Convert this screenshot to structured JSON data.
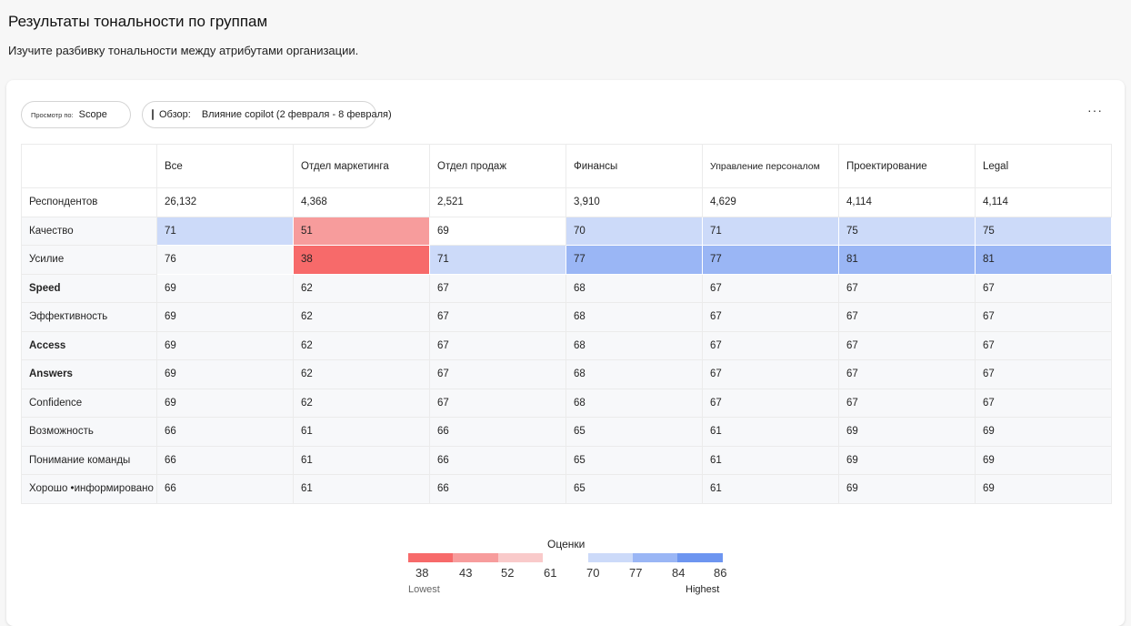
{
  "page": {
    "title": "Результаты тональности по группам",
    "subtitle": "Изучите разбивку тональности между атрибутами организации."
  },
  "toolbar": {
    "view_by_label": "Просмотр по:",
    "view_by_value": "Scope",
    "scope_label": "Обзор:",
    "scope_value": "Влияние copilot (2 февраля - 8 февраля)",
    "more_label": "···",
    "icons": {
      "scope": "survey-list-icon",
      "more": "more-horizontal-icon"
    }
  },
  "table": {
    "columns": [
      "",
      "Все",
      "Отдел маркетинга",
      "Отдел продаж",
      "Финансы",
      "Управление персоналом",
      "Проектирование",
      "Legal"
    ],
    "rows": [
      {
        "label": "Респондентов",
        "bold": false,
        "values": [
          "26,132",
          "4,368",
          "2,521",
          "3,910",
          "4,629",
          "4,114",
          "4,114"
        ]
      },
      {
        "label": "Качество",
        "bold": false,
        "values": [
          "71",
          "51",
          "69",
          "70",
          "71",
          "75",
          "75"
        ]
      },
      {
        "label": "Усилие",
        "bold": false,
        "values": [
          "76",
          "38",
          "71",
          "77",
          "77",
          "81",
          "81"
        ]
      },
      {
        "label": "Speed",
        "bold": true,
        "values": [
          "69",
          "62",
          "67",
          "68",
          "67",
          "67",
          "67"
        ]
      },
      {
        "label": "Эффективность",
        "bold": false,
        "values": [
          "69",
          "62",
          "67",
          "68",
          "67",
          "67",
          "67"
        ]
      },
      {
        "label": "Access",
        "bold": true,
        "values": [
          "69",
          "62",
          "67",
          "68",
          "67",
          "67",
          "67"
        ]
      },
      {
        "label": "Answers",
        "bold": true,
        "values": [
          "69",
          "62",
          "67",
          "68",
          "67",
          "67",
          "67"
        ]
      },
      {
        "label": "Confidence",
        "bold": false,
        "values": [
          "69",
          "62",
          "67",
          "68",
          "67",
          "67",
          "67"
        ]
      },
      {
        "label": "Возможность",
        "bold": false,
        "values": [
          "66",
          "61",
          "66",
          "65",
          "61",
          "69",
          "69"
        ]
      },
      {
        "label": "Понимание команды",
        "bold": false,
        "values": [
          "66",
          "61",
          "66",
          "65",
          "61",
          "69",
          "69"
        ]
      },
      {
        "label": "Хорошо •информировано",
        "bold": false,
        "values": [
          "66",
          "61",
          "66",
          "65",
          "61",
          "69",
          "69"
        ]
      }
    ],
    "cell_colors": {
      "1": [
        "#ccdaf9",
        "#f79c9c",
        "#ffffff",
        "#ccdaf9",
        "#ccdaf9",
        "#ccdaf9",
        "#ccdaf9"
      ],
      "2": [
        "#f7f8fa",
        "#f76a6a",
        "#ccdaf9",
        "#9ab6f5",
        "#9ab6f5",
        "#9ab6f5",
        "#9ab6f5"
      ]
    },
    "default_row_bg": "#f7f8fa"
  },
  "legend": {
    "title": "Оценки",
    "ticks": [
      "38",
      "43",
      "52",
      "61",
      "70",
      "77",
      "84",
      "86"
    ],
    "segment_colors": [
      "#f76a6a",
      "#f79c9c",
      "#f9caca",
      "#ccdaf9",
      "#9ab6f5",
      "#6d95f0"
    ],
    "low_label": "Lowest",
    "high_label": "Highest"
  }
}
